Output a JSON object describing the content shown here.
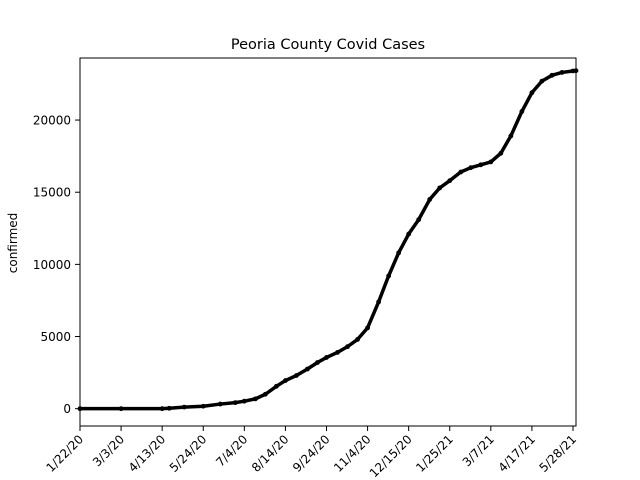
{
  "chart_data": {
    "type": "line",
    "title": "Peoria County Covid Cases",
    "xlabel": "",
    "ylabel": "confirmed",
    "x_start": "1/22/20",
    "x_end": "5/31/21",
    "ylim": [
      -1200,
      24300
    ],
    "x_ticks": [
      "1/22/20",
      "3/3/20",
      "4/13/20",
      "5/24/20",
      "7/4/20",
      "8/14/20",
      "9/24/20",
      "11/4/20",
      "12/15/20",
      "1/25/21",
      "3/7/21",
      "4/17/21",
      "5/28/21"
    ],
    "y_ticks": [
      0,
      5000,
      10000,
      15000,
      20000
    ],
    "grid": false,
    "line_color": "#000000",
    "series": [
      {
        "name": "",
        "points": [
          [
            "1/22/20",
            0
          ],
          [
            "3/3/20",
            0
          ],
          [
            "4/13/20",
            0
          ],
          [
            "4/20/20",
            30
          ],
          [
            "5/5/20",
            110
          ],
          [
            "5/24/20",
            170
          ],
          [
            "6/10/20",
            320
          ],
          [
            "6/25/20",
            420
          ],
          [
            "7/4/20",
            520
          ],
          [
            "7/15/20",
            680
          ],
          [
            "7/25/20",
            1000
          ],
          [
            "8/5/20",
            1550
          ],
          [
            "8/14/20",
            1950
          ],
          [
            "8/25/20",
            2300
          ],
          [
            "9/5/20",
            2750
          ],
          [
            "9/15/20",
            3200
          ],
          [
            "9/24/20",
            3550
          ],
          [
            "10/5/20",
            3900
          ],
          [
            "10/15/20",
            4300
          ],
          [
            "10/25/20",
            4800
          ],
          [
            "11/4/20",
            5600
          ],
          [
            "11/15/20",
            7400
          ],
          [
            "11/25/20",
            9200
          ],
          [
            "12/5/20",
            10800
          ],
          [
            "12/15/20",
            12100
          ],
          [
            "12/25/20",
            13100
          ],
          [
            "1/5/21",
            14500
          ],
          [
            "1/15/21",
            15300
          ],
          [
            "1/25/21",
            15800
          ],
          [
            "2/5/21",
            16400
          ],
          [
            "2/15/21",
            16700
          ],
          [
            "2/25/21",
            16900
          ],
          [
            "3/7/21",
            17100
          ],
          [
            "3/17/21",
            17700
          ],
          [
            "3/27/21",
            18900
          ],
          [
            "4/7/21",
            20600
          ],
          [
            "4/17/21",
            21900
          ],
          [
            "4/27/21",
            22700
          ],
          [
            "5/7/21",
            23100
          ],
          [
            "5/17/21",
            23300
          ],
          [
            "5/28/21",
            23400
          ],
          [
            "5/31/21",
            23420
          ]
        ]
      }
    ]
  }
}
